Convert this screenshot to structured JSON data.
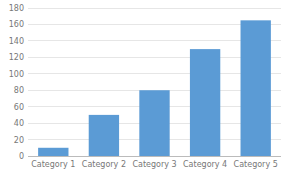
{
  "chart_data": {
    "type": "bar",
    "categories": [
      "Category 1",
      "Category 2",
      "Category 3",
      "Category 4",
      "Category 5"
    ],
    "values": [
      10,
      50,
      80,
      130,
      165
    ],
    "color": "#5b9bd5",
    "ylim": [
      0,
      180
    ],
    "yticks": [
      0,
      20,
      40,
      60,
      80,
      100,
      120,
      140,
      160,
      180
    ],
    "grid": true
  }
}
